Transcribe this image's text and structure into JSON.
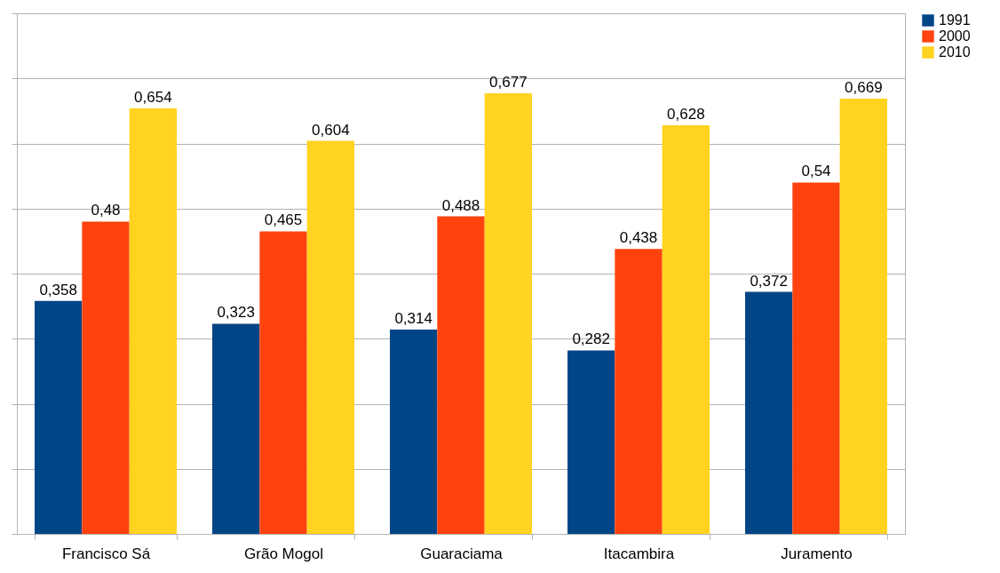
{
  "chart_data": {
    "type": "bar",
    "categories": [
      "Francisco Sá",
      "Grão Mogol",
      "Guaraciama",
      "Itacambira",
      "Juramento"
    ],
    "series": [
      {
        "name": "1991",
        "color": "#004586",
        "values": [
          0.358,
          0.323,
          0.314,
          0.282,
          0.372
        ],
        "value_labels": [
          "0,358",
          "0,323",
          "0,314",
          "0,282",
          "0,372"
        ]
      },
      {
        "name": "2000",
        "color": "#ff420e",
        "values": [
          0.48,
          0.465,
          0.488,
          0.438,
          0.54
        ],
        "value_labels": [
          "0,48",
          "0,465",
          "0,488",
          "0,438",
          "0,54"
        ]
      },
      {
        "name": "2010",
        "color": "#ffd320",
        "values": [
          0.654,
          0.604,
          0.677,
          0.628,
          0.669
        ],
        "value_labels": [
          "0,654",
          "0,604",
          "0,677",
          "0,628",
          "0,669"
        ]
      }
    ],
    "ylim": [
      0,
      0.8
    ],
    "yticks": [
      {
        "value": 0,
        "label": null
      },
      {
        "value": 0.1,
        "label": null
      },
      {
        "value": 0.2,
        "label": null
      },
      {
        "value": 0.3,
        "label": null
      },
      {
        "value": 0.4,
        "label": null
      },
      {
        "value": 0.5,
        "label": null
      },
      {
        "value": 0.6,
        "label": null
      },
      {
        "value": 0.7,
        "label": null
      },
      {
        "value": 0.8,
        "label": null
      }
    ],
    "grid": "y",
    "legend": "right",
    "tick_labels": "x"
  }
}
